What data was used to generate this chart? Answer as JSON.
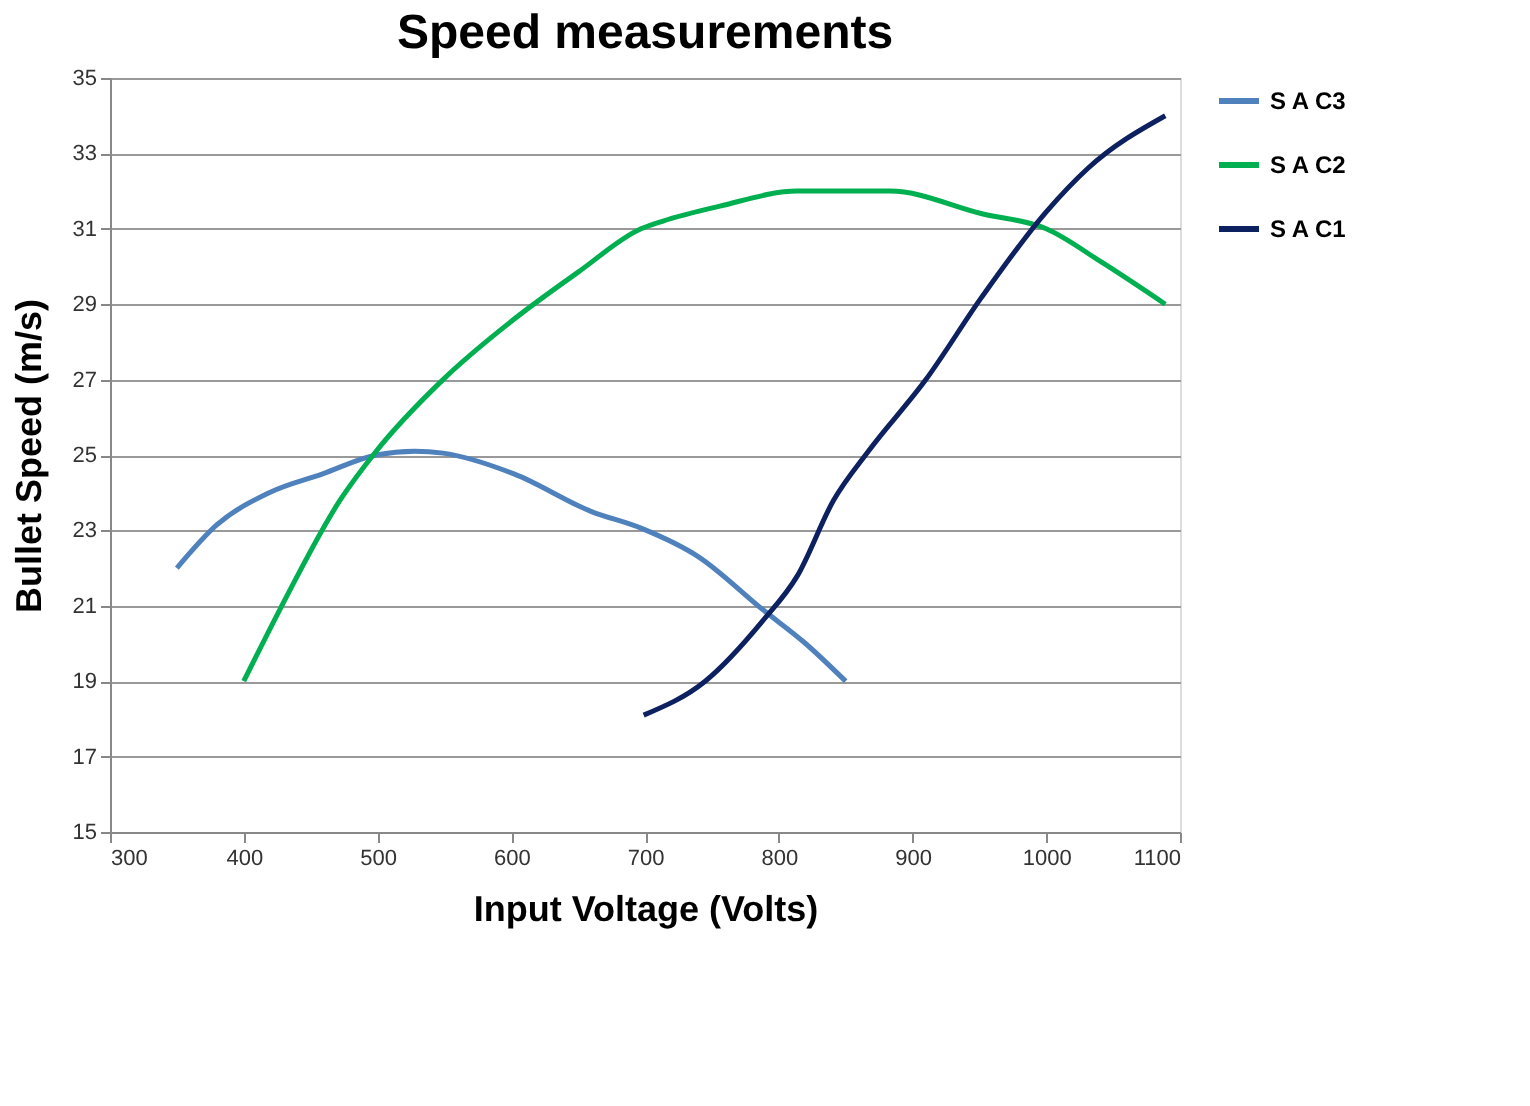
{
  "chart_data": {
    "type": "line",
    "title": "Speed measurements",
    "xlabel": "Input  Voltage (Volts)",
    "ylabel": "Bullet  Speed  (m/s)",
    "xlim": [
      300,
      1100
    ],
    "xticks": [
      300,
      400,
      500,
      600,
      700,
      800,
      900,
      1000,
      1100
    ],
    "ylim": [
      15,
      35
    ],
    "yticks": [
      15,
      17,
      19,
      21,
      23,
      25,
      27,
      29,
      31,
      33,
      35
    ],
    "grid": "y",
    "legend": "right",
    "marker": "none",
    "line_style": "solid",
    "series": [
      {
        "name": "S A C3",
        "color": "#4f81bd",
        "x": [
          350,
          380,
          419,
          459,
          499,
          528,
          549,
          602,
          660,
          697,
          740,
          788,
          820,
          850
        ],
        "values": [
          22.0,
          23.15,
          24.0,
          24.5,
          25.0,
          25.1,
          25.05,
          24.5,
          23.5,
          23.06,
          22.3,
          20.9,
          20.0,
          19.0
        ]
      },
      {
        "name": "S A C2",
        "color": "#00b050",
        "x": [
          400,
          427,
          472,
          499,
          549,
          602,
          650,
          697,
          713,
          756,
          814,
          851,
          883,
          952,
          1000,
          1042,
          1089
        ],
        "values": [
          19.0,
          20.9,
          23.8,
          25.1,
          27.0,
          28.6,
          29.85,
          31.0,
          31.2,
          31.6,
          32.0,
          32.0,
          32.0,
          31.4,
          31.0,
          30.1,
          29.0
        ]
      },
      {
        "name": "S A C1",
        "color": "#0d2060",
        "x": [
          699,
          745,
          788,
          814,
          841,
          867,
          910,
          952,
          1000,
          1031,
          1089
        ],
        "values": [
          18.1,
          19.0,
          20.6,
          21.8,
          23.8,
          25.1,
          27.0,
          29.2,
          31.45,
          32.6,
          34.0
        ]
      }
    ]
  }
}
